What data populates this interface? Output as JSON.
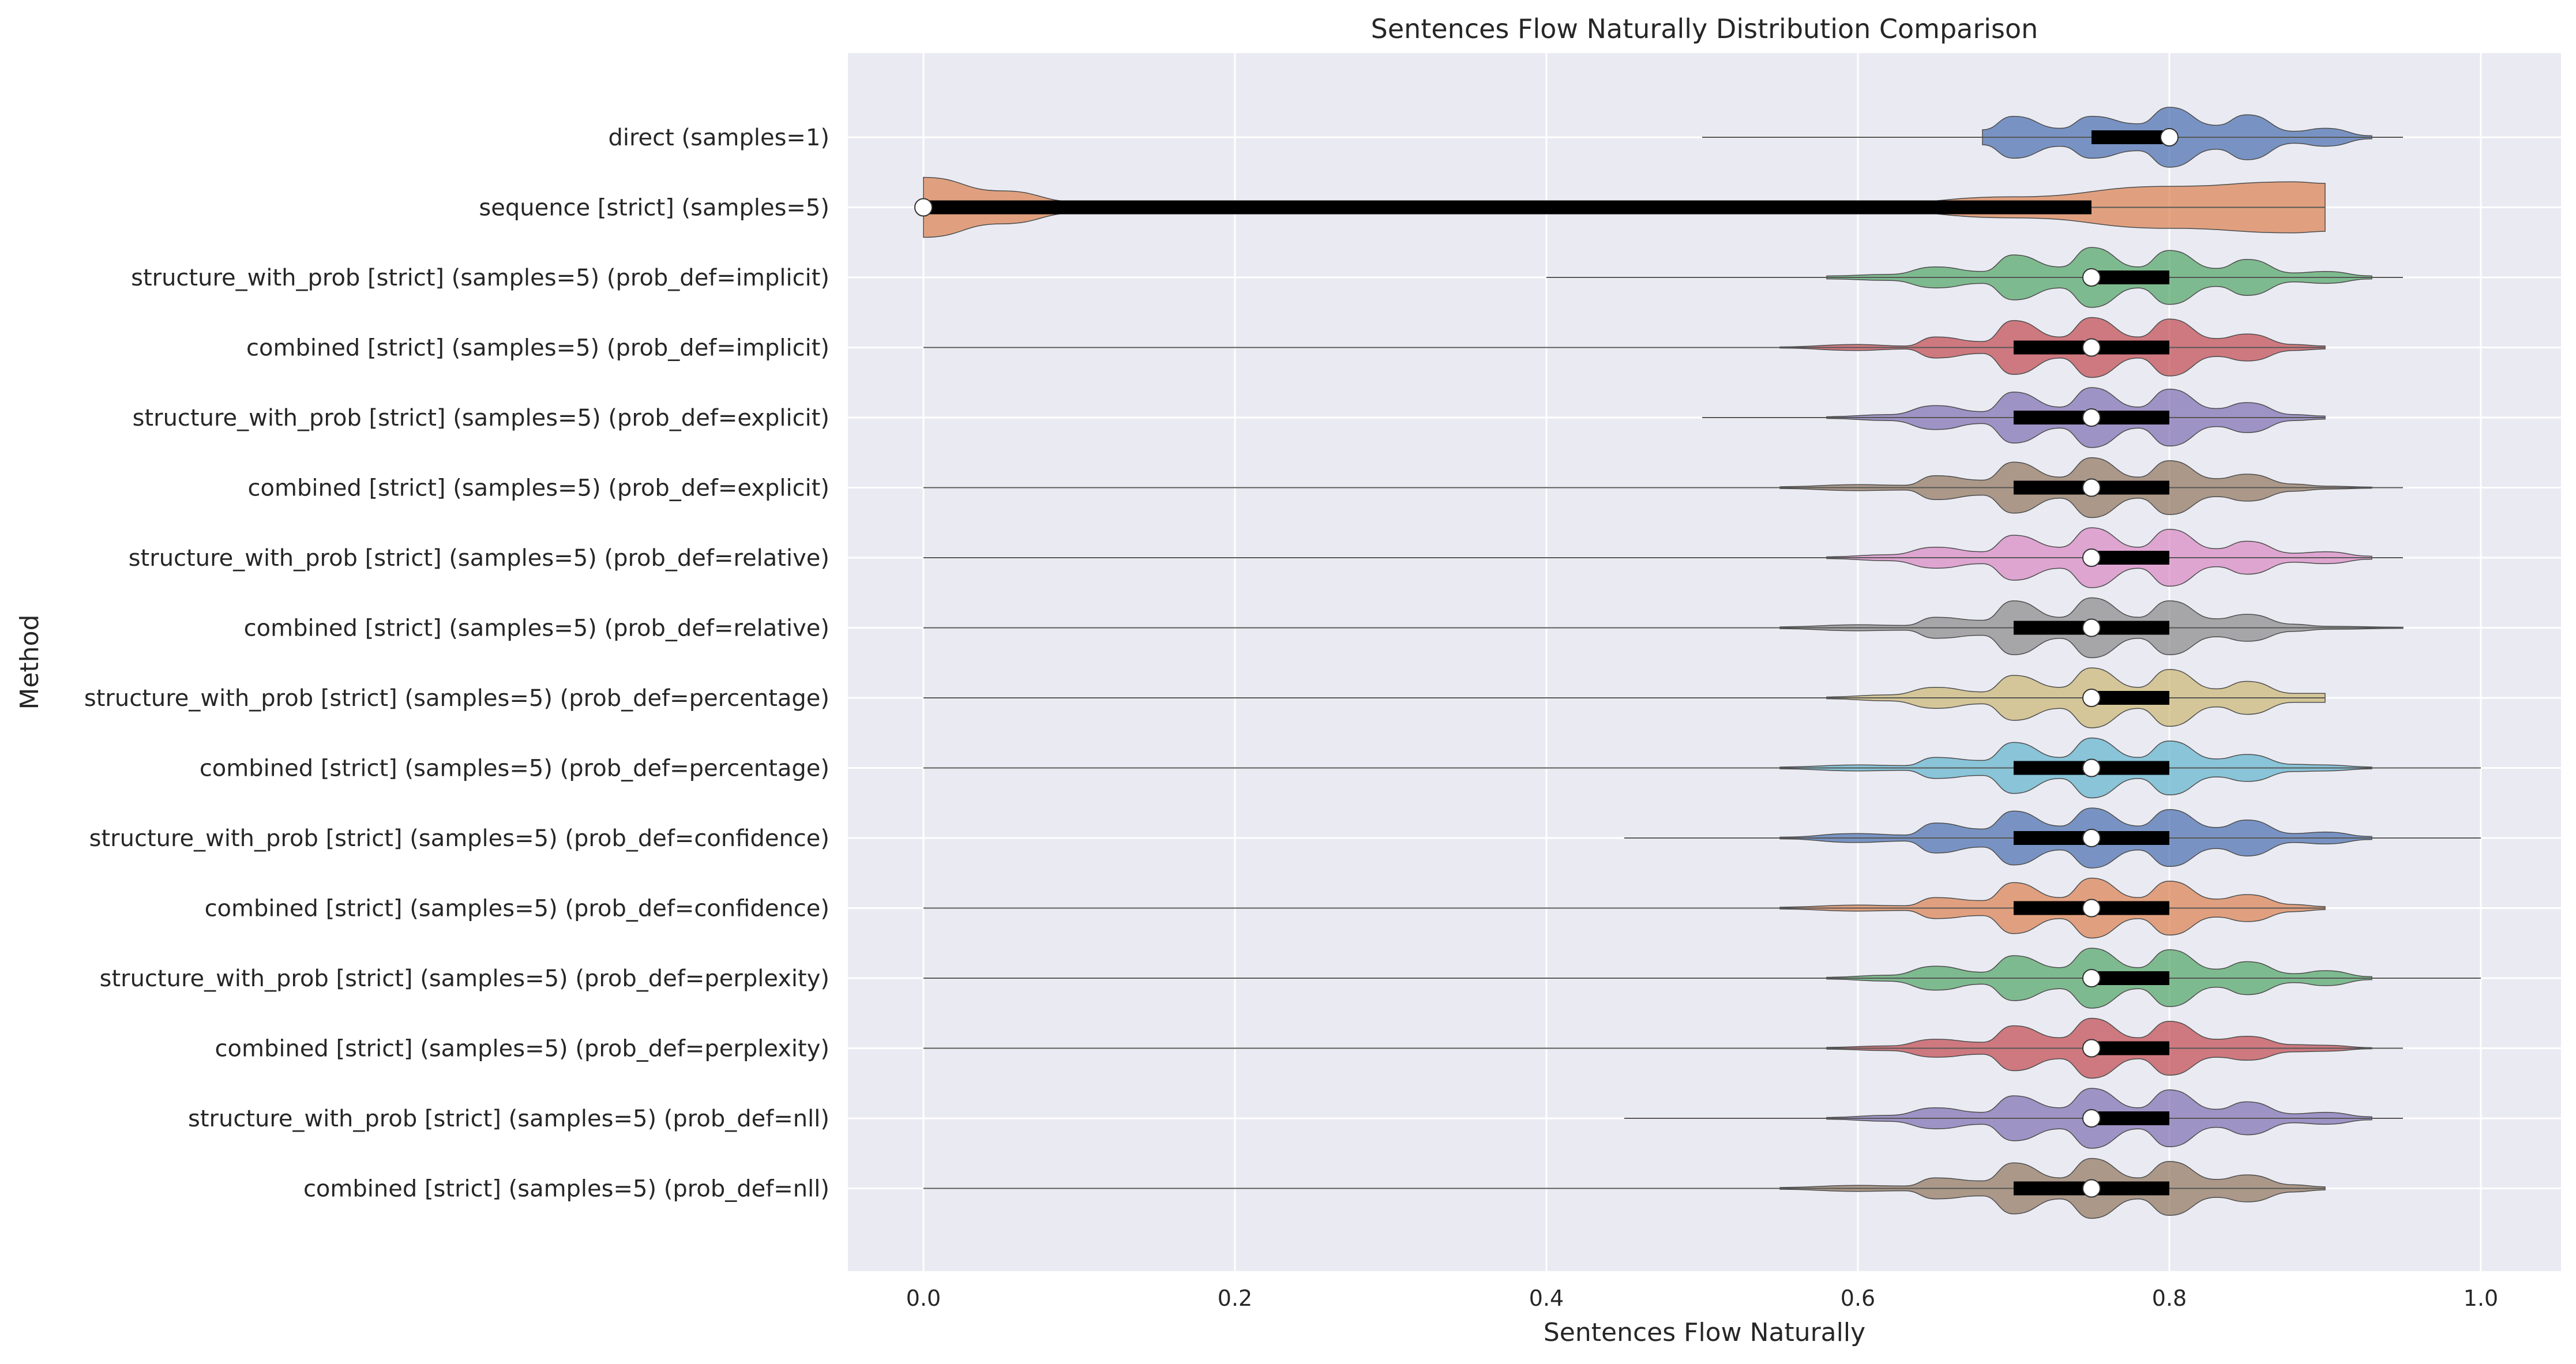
{
  "chart_data": {
    "type": "violin",
    "title": "Sentences Flow Naturally Distribution Comparison",
    "xlabel": "Sentences Flow Naturally",
    "ylabel": "Method",
    "xlim": [
      -0.05,
      1.05
    ],
    "xticks": [
      0.0,
      0.2,
      0.4,
      0.6,
      0.8,
      1.0
    ],
    "xtick_labels": [
      "0.0",
      "0.2",
      "0.4",
      "0.6",
      "0.8",
      "1.0"
    ],
    "grid": true,
    "legend": "none",
    "palette": [
      "#4c72b0",
      "#dd8452",
      "#55a868",
      "#c44e52",
      "#8172b3",
      "#937860",
      "#da8bc3",
      "#8c8c8c",
      "#ccb974",
      "#64b5cd"
    ],
    "series": [
      {
        "category": "direct (samples=1)",
        "min": 0.5,
        "q1": 0.75,
        "median": 0.8,
        "q3": 0.8,
        "max": 0.95,
        "density": [
          [
            0.68,
            0.25
          ],
          [
            0.7,
            0.7
          ],
          [
            0.73,
            0.3
          ],
          [
            0.75,
            0.7
          ],
          [
            0.78,
            0.45
          ],
          [
            0.8,
            1.0
          ],
          [
            0.83,
            0.4
          ],
          [
            0.85,
            0.75
          ],
          [
            0.88,
            0.2
          ],
          [
            0.9,
            0.3
          ],
          [
            0.93,
            0.05
          ]
        ]
      },
      {
        "category": "sequence [strict] (samples=5)",
        "min": 0.0,
        "q1": 0.0,
        "median": 0.0,
        "q3": 0.75,
        "max": 0.9,
        "density": [
          [
            0.0,
            1.0
          ],
          [
            0.05,
            0.55
          ],
          [
            0.1,
            0.18
          ],
          [
            0.25,
            0.02
          ],
          [
            0.45,
            0.01
          ],
          [
            0.6,
            0.08
          ],
          [
            0.7,
            0.35
          ],
          [
            0.8,
            0.7
          ],
          [
            0.88,
            0.85
          ],
          [
            0.9,
            0.8
          ]
        ]
      },
      {
        "category": "structure_with_prob [strict] (samples=5) (prob_def=implicit)",
        "min": 0.4,
        "q1": 0.75,
        "median": 0.75,
        "q3": 0.8,
        "max": 0.95,
        "density": [
          [
            0.58,
            0.05
          ],
          [
            0.62,
            0.1
          ],
          [
            0.65,
            0.35
          ],
          [
            0.68,
            0.2
          ],
          [
            0.7,
            0.75
          ],
          [
            0.73,
            0.35
          ],
          [
            0.75,
            1.0
          ],
          [
            0.78,
            0.35
          ],
          [
            0.8,
            0.9
          ],
          [
            0.83,
            0.3
          ],
          [
            0.85,
            0.6
          ],
          [
            0.88,
            0.15
          ],
          [
            0.9,
            0.2
          ],
          [
            0.93,
            0.05
          ]
        ]
      },
      {
        "category": "combined [strict] (samples=5) (prob_def=implicit)",
        "min": 0.0,
        "q1": 0.7,
        "median": 0.75,
        "q3": 0.8,
        "max": 0.9,
        "density": [
          [
            0.55,
            0.02
          ],
          [
            0.6,
            0.1
          ],
          [
            0.63,
            0.05
          ],
          [
            0.65,
            0.35
          ],
          [
            0.68,
            0.2
          ],
          [
            0.7,
            0.9
          ],
          [
            0.73,
            0.35
          ],
          [
            0.75,
            1.0
          ],
          [
            0.78,
            0.35
          ],
          [
            0.8,
            0.95
          ],
          [
            0.83,
            0.3
          ],
          [
            0.85,
            0.45
          ],
          [
            0.88,
            0.1
          ],
          [
            0.9,
            0.05
          ]
        ]
      },
      {
        "category": "structure_with_prob [strict] (samples=5) (prob_def=explicit)",
        "min": 0.5,
        "q1": 0.7,
        "median": 0.75,
        "q3": 0.8,
        "max": 0.9,
        "density": [
          [
            0.58,
            0.03
          ],
          [
            0.62,
            0.1
          ],
          [
            0.65,
            0.4
          ],
          [
            0.68,
            0.2
          ],
          [
            0.7,
            0.85
          ],
          [
            0.73,
            0.35
          ],
          [
            0.75,
            1.0
          ],
          [
            0.78,
            0.35
          ],
          [
            0.8,
            0.95
          ],
          [
            0.83,
            0.3
          ],
          [
            0.85,
            0.5
          ],
          [
            0.88,
            0.1
          ],
          [
            0.9,
            0.05
          ]
        ]
      },
      {
        "category": "combined [strict] (samples=5) (prob_def=explicit)",
        "min": 0.0,
        "q1": 0.7,
        "median": 0.75,
        "q3": 0.8,
        "max": 0.95,
        "density": [
          [
            0.55,
            0.03
          ],
          [
            0.6,
            0.1
          ],
          [
            0.63,
            0.08
          ],
          [
            0.65,
            0.4
          ],
          [
            0.68,
            0.25
          ],
          [
            0.7,
            0.85
          ],
          [
            0.73,
            0.35
          ],
          [
            0.75,
            1.0
          ],
          [
            0.78,
            0.35
          ],
          [
            0.8,
            0.9
          ],
          [
            0.83,
            0.3
          ],
          [
            0.85,
            0.45
          ],
          [
            0.88,
            0.12
          ],
          [
            0.9,
            0.05
          ],
          [
            0.93,
            0.02
          ]
        ]
      },
      {
        "category": "structure_with_prob [strict] (samples=5) (prob_def=relative)",
        "min": 0.0,
        "q1": 0.75,
        "median": 0.75,
        "q3": 0.8,
        "max": 0.95,
        "density": [
          [
            0.58,
            0.03
          ],
          [
            0.62,
            0.1
          ],
          [
            0.65,
            0.35
          ],
          [
            0.68,
            0.2
          ],
          [
            0.7,
            0.75
          ],
          [
            0.73,
            0.35
          ],
          [
            0.75,
            1.0
          ],
          [
            0.78,
            0.35
          ],
          [
            0.8,
            0.95
          ],
          [
            0.83,
            0.3
          ],
          [
            0.85,
            0.55
          ],
          [
            0.88,
            0.15
          ],
          [
            0.9,
            0.2
          ],
          [
            0.93,
            0.05
          ]
        ]
      },
      {
        "category": "combined [strict] (samples=5) (prob_def=relative)",
        "min": 0.0,
        "q1": 0.7,
        "median": 0.75,
        "q3": 0.8,
        "max": 0.95,
        "density": [
          [
            0.55,
            0.03
          ],
          [
            0.6,
            0.1
          ],
          [
            0.63,
            0.08
          ],
          [
            0.65,
            0.35
          ],
          [
            0.68,
            0.25
          ],
          [
            0.7,
            0.9
          ],
          [
            0.73,
            0.35
          ],
          [
            0.75,
            1.0
          ],
          [
            0.78,
            0.35
          ],
          [
            0.8,
            0.9
          ],
          [
            0.83,
            0.3
          ],
          [
            0.85,
            0.45
          ],
          [
            0.88,
            0.12
          ],
          [
            0.9,
            0.05
          ],
          [
            0.95,
            0.02
          ]
        ]
      },
      {
        "category": "structure_with_prob [strict] (samples=5) (prob_def=percentage)",
        "min": 0.0,
        "q1": 0.75,
        "median": 0.75,
        "q3": 0.8,
        "max": 0.9,
        "density": [
          [
            0.58,
            0.03
          ],
          [
            0.62,
            0.1
          ],
          [
            0.65,
            0.35
          ],
          [
            0.68,
            0.2
          ],
          [
            0.7,
            0.75
          ],
          [
            0.73,
            0.35
          ],
          [
            0.75,
            1.0
          ],
          [
            0.78,
            0.35
          ],
          [
            0.8,
            0.95
          ],
          [
            0.83,
            0.3
          ],
          [
            0.85,
            0.55
          ],
          [
            0.88,
            0.15
          ],
          [
            0.9,
            0.15
          ]
        ]
      },
      {
        "category": "combined [strict] (samples=5) (prob_def=percentage)",
        "min": 0.0,
        "q1": 0.7,
        "median": 0.75,
        "q3": 0.8,
        "max": 1.0,
        "density": [
          [
            0.55,
            0.03
          ],
          [
            0.6,
            0.1
          ],
          [
            0.63,
            0.08
          ],
          [
            0.65,
            0.35
          ],
          [
            0.68,
            0.25
          ],
          [
            0.7,
            0.85
          ],
          [
            0.73,
            0.35
          ],
          [
            0.75,
            1.0
          ],
          [
            0.78,
            0.35
          ],
          [
            0.8,
            0.9
          ],
          [
            0.83,
            0.3
          ],
          [
            0.85,
            0.45
          ],
          [
            0.88,
            0.12
          ],
          [
            0.9,
            0.1
          ],
          [
            0.93,
            0.03
          ]
        ]
      },
      {
        "category": "structure_with_prob [strict] (samples=5) (prob_def=confidence)",
        "min": 0.45,
        "q1": 0.7,
        "median": 0.75,
        "q3": 0.8,
        "max": 1.0,
        "density": [
          [
            0.55,
            0.03
          ],
          [
            0.6,
            0.15
          ],
          [
            0.63,
            0.1
          ],
          [
            0.65,
            0.5
          ],
          [
            0.68,
            0.3
          ],
          [
            0.7,
            0.9
          ],
          [
            0.73,
            0.4
          ],
          [
            0.75,
            1.0
          ],
          [
            0.78,
            0.4
          ],
          [
            0.8,
            0.95
          ],
          [
            0.83,
            0.35
          ],
          [
            0.85,
            0.6
          ],
          [
            0.88,
            0.15
          ],
          [
            0.9,
            0.2
          ],
          [
            0.93,
            0.05
          ]
        ]
      },
      {
        "category": "combined [strict] (samples=5) (prob_def=confidence)",
        "min": 0.0,
        "q1": 0.7,
        "median": 0.75,
        "q3": 0.8,
        "max": 0.9,
        "density": [
          [
            0.55,
            0.03
          ],
          [
            0.6,
            0.1
          ],
          [
            0.63,
            0.08
          ],
          [
            0.65,
            0.35
          ],
          [
            0.68,
            0.25
          ],
          [
            0.7,
            0.85
          ],
          [
            0.73,
            0.35
          ],
          [
            0.75,
            1.0
          ],
          [
            0.78,
            0.35
          ],
          [
            0.8,
            0.9
          ],
          [
            0.83,
            0.3
          ],
          [
            0.85,
            0.45
          ],
          [
            0.88,
            0.12
          ],
          [
            0.9,
            0.05
          ]
        ]
      },
      {
        "category": "structure_with_prob [strict] (samples=5) (prob_def=perplexity)",
        "min": 0.0,
        "q1": 0.75,
        "median": 0.75,
        "q3": 0.8,
        "max": 1.0,
        "density": [
          [
            0.58,
            0.03
          ],
          [
            0.62,
            0.1
          ],
          [
            0.65,
            0.4
          ],
          [
            0.68,
            0.2
          ],
          [
            0.7,
            0.75
          ],
          [
            0.73,
            0.35
          ],
          [
            0.75,
            1.0
          ],
          [
            0.78,
            0.35
          ],
          [
            0.8,
            0.95
          ],
          [
            0.83,
            0.3
          ],
          [
            0.85,
            0.55
          ],
          [
            0.88,
            0.15
          ],
          [
            0.9,
            0.25
          ],
          [
            0.93,
            0.05
          ]
        ]
      },
      {
        "category": "combined [strict] (samples=5) (prob_def=perplexity)",
        "min": 0.0,
        "q1": 0.75,
        "median": 0.75,
        "q3": 0.8,
        "max": 0.95,
        "density": [
          [
            0.58,
            0.03
          ],
          [
            0.62,
            0.08
          ],
          [
            0.65,
            0.3
          ],
          [
            0.68,
            0.2
          ],
          [
            0.7,
            0.75
          ],
          [
            0.73,
            0.35
          ],
          [
            0.75,
            1.0
          ],
          [
            0.78,
            0.35
          ],
          [
            0.8,
            0.9
          ],
          [
            0.83,
            0.3
          ],
          [
            0.85,
            0.4
          ],
          [
            0.88,
            0.12
          ],
          [
            0.9,
            0.1
          ],
          [
            0.93,
            0.02
          ]
        ]
      },
      {
        "category": "structure_with_prob [strict] (samples=5) (prob_def=nll)",
        "min": 0.45,
        "q1": 0.75,
        "median": 0.75,
        "q3": 0.8,
        "max": 0.95,
        "density": [
          [
            0.58,
            0.03
          ],
          [
            0.62,
            0.1
          ],
          [
            0.65,
            0.35
          ],
          [
            0.68,
            0.2
          ],
          [
            0.7,
            0.75
          ],
          [
            0.73,
            0.35
          ],
          [
            0.75,
            1.0
          ],
          [
            0.78,
            0.35
          ],
          [
            0.8,
            0.95
          ],
          [
            0.83,
            0.3
          ],
          [
            0.85,
            0.55
          ],
          [
            0.88,
            0.15
          ],
          [
            0.9,
            0.2
          ],
          [
            0.93,
            0.05
          ]
        ]
      },
      {
        "category": "combined [strict] (samples=5) (prob_def=nll)",
        "min": 0.0,
        "q1": 0.7,
        "median": 0.75,
        "q3": 0.8,
        "max": 0.9,
        "density": [
          [
            0.55,
            0.03
          ],
          [
            0.6,
            0.1
          ],
          [
            0.63,
            0.08
          ],
          [
            0.65,
            0.35
          ],
          [
            0.68,
            0.25
          ],
          [
            0.7,
            0.85
          ],
          [
            0.73,
            0.35
          ],
          [
            0.75,
            1.0
          ],
          [
            0.78,
            0.35
          ],
          [
            0.8,
            0.9
          ],
          [
            0.83,
            0.3
          ],
          [
            0.85,
            0.45
          ],
          [
            0.88,
            0.12
          ],
          [
            0.9,
            0.05
          ]
        ]
      }
    ]
  }
}
